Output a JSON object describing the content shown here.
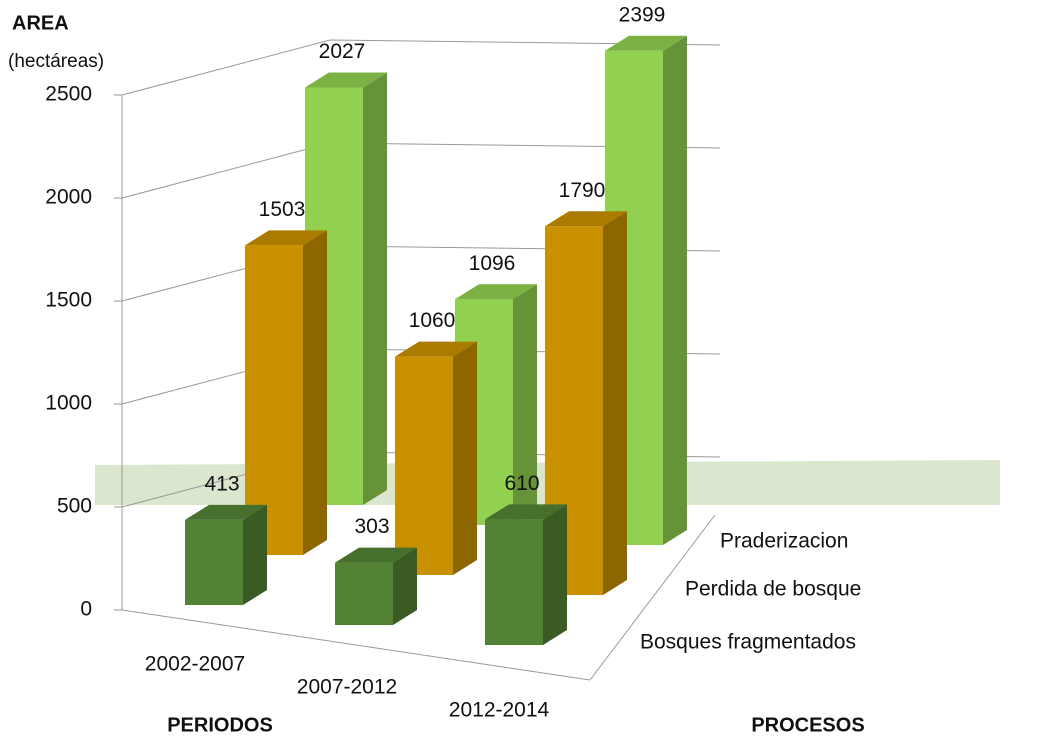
{
  "chart_data": {
    "type": "bar3d",
    "title": "AREA",
    "subtitle": "(hectáreas)",
    "x_label": "PERIODOS",
    "z_label": "PROCESOS",
    "categories": [
      "2002-2007",
      "2007-2012",
      "2012-2014"
    ],
    "series": [
      {
        "name": "Bosques fragmentados",
        "color": "#548235",
        "values": [
          413,
          303,
          610
        ]
      },
      {
        "name": "Perdida de bosque",
        "color": "#c99100",
        "values": [
          1503,
          1060,
          1790
        ]
      },
      {
        "name": "Praderizacion",
        "color": "#92d050",
        "values": [
          2027,
          1096,
          2399
        ]
      }
    ],
    "ylim": [
      0,
      2500
    ],
    "yticks": [
      0,
      500,
      1000,
      1500,
      2000,
      2500
    ],
    "grid": true
  }
}
